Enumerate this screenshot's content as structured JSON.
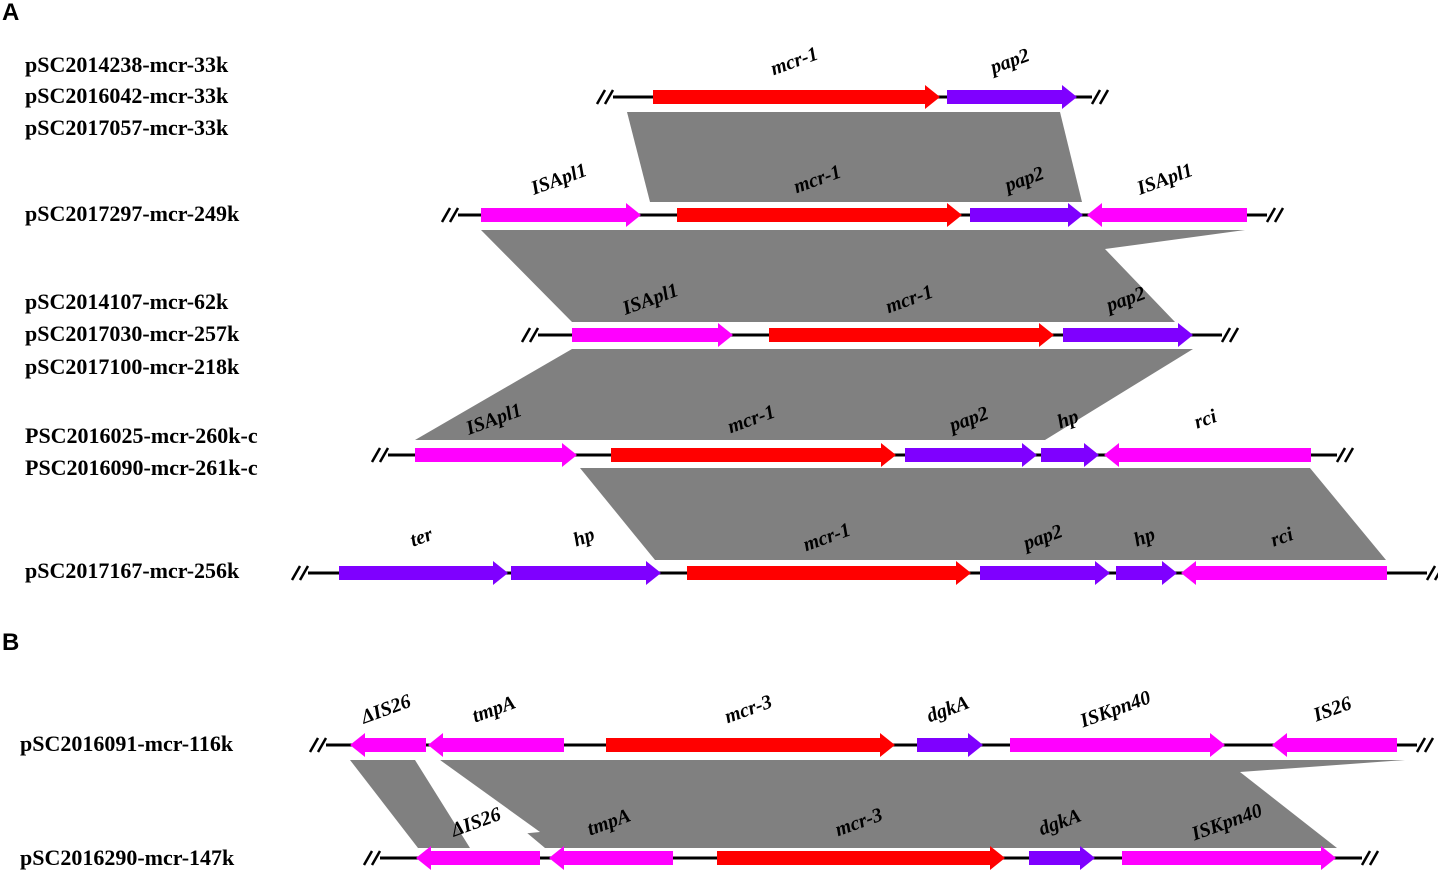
{
  "panels": [
    {
      "letter": "A",
      "tracks": [
        {
          "names": [
            "pSC2014238-mcr-33k",
            "pSC2016042-mcr-33k",
            "pSC2017057-mcr-33k"
          ],
          "genes": [
            {
              "label": "mcr-1",
              "color": "#ff0000"
            },
            {
              "label": "pap2",
              "color": "#7f00ff"
            }
          ]
        },
        {
          "names": [
            "pSC2017297-mcr-249k"
          ],
          "genes": [
            {
              "label": "ISApl1",
              "color": "#ff00ff"
            },
            {
              "label": "mcr-1",
              "color": "#ff0000"
            },
            {
              "label": "pap2",
              "color": "#7f00ff"
            },
            {
              "label": "ISApl1",
              "color": "#ff00ff"
            }
          ]
        },
        {
          "names": [
            "pSC2014107-mcr-62k",
            "pSC2017030-mcr-257k",
            "pSC2017100-mcr-218k"
          ],
          "genes": [
            {
              "label": "ISApl1",
              "color": "#ff00ff"
            },
            {
              "label": "mcr-1",
              "color": "#ff0000"
            },
            {
              "label": "pap2",
              "color": "#7f00ff"
            }
          ]
        },
        {
          "names": [
            "PSC2016025-mcr-260k-c",
            "PSC2016090-mcr-261k-c"
          ],
          "genes": [
            {
              "label": "ISApl1",
              "color": "#ff00ff"
            },
            {
              "label": "mcr-1",
              "color": "#ff0000"
            },
            {
              "label": "pap2",
              "color": "#7f00ff"
            },
            {
              "label": "hp",
              "color": "#7f00ff"
            },
            {
              "label": "rci",
              "color": "#ff00ff"
            }
          ]
        },
        {
          "names": [
            "pSC2017167-mcr-256k"
          ],
          "genes": [
            {
              "label": "ter",
              "color": "#7f00ff"
            },
            {
              "label": "hp",
              "color": "#7f00ff"
            },
            {
              "label": "mcr-1",
              "color": "#ff0000"
            },
            {
              "label": "pap2",
              "color": "#7f00ff"
            },
            {
              "label": "hp",
              "color": "#7f00ff"
            },
            {
              "label": "rci",
              "color": "#ff00ff"
            }
          ]
        }
      ]
    },
    {
      "letter": "B",
      "tracks": [
        {
          "names": [
            "pSC2016091-mcr-116k"
          ],
          "genes": [
            {
              "label": "ΔIS26",
              "color": "#ff00ff"
            },
            {
              "label": "tmpA",
              "color": "#ff00ff"
            },
            {
              "label": "mcr-3",
              "color": "#ff0000"
            },
            {
              "label": "dgkA",
              "color": "#7f00ff"
            },
            {
              "label": "ISKpn40",
              "color": "#ff00ff"
            },
            {
              "label": "IS26",
              "color": "#ff00ff"
            }
          ]
        },
        {
          "names": [
            "pSC2016290-mcr-147k"
          ],
          "genes": [
            {
              "label": "ΔIS26",
              "color": "#ff00ff"
            },
            {
              "label": "tmpA",
              "color": "#ff00ff"
            },
            {
              "label": "mcr-3",
              "color": "#ff0000"
            },
            {
              "label": "dgkA",
              "color": "#7f00ff"
            },
            {
              "label": "ISKpn40",
              "color": "#ff00ff"
            }
          ]
        }
      ]
    }
  ]
}
